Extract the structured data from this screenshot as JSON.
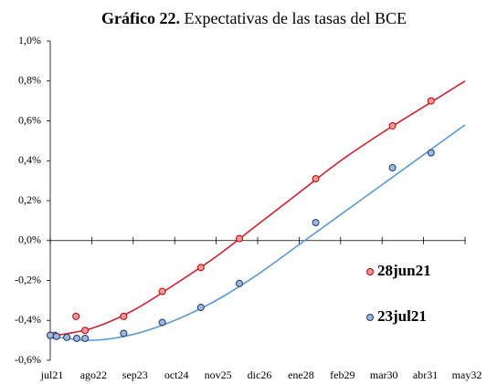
{
  "chart_data": {
    "type": "scatter",
    "title_prefix": "Gráfico 22.",
    "title": " Expectativas de las tasas del BCE",
    "xlim": [
      0,
      10
    ],
    "xticks": [
      {
        "value": 0,
        "label": "jul21"
      },
      {
        "value": 1,
        "label": "ago22"
      },
      {
        "value": 2,
        "label": "sep23"
      },
      {
        "value": 3,
        "label": "oct24"
      },
      {
        "value": 4,
        "label": "nov25"
      },
      {
        "value": 5,
        "label": "dic26"
      },
      {
        "value": 6,
        "label": "ene28"
      },
      {
        "value": 7,
        "label": "feb29"
      },
      {
        "value": 8,
        "label": "mar30"
      },
      {
        "value": 9,
        "label": "abr31"
      },
      {
        "value": 10,
        "label": "may32"
      }
    ],
    "ylim": [
      -0.6,
      1.0
    ],
    "yticks": [
      {
        "value": -0.6,
        "label": "-0,6%"
      },
      {
        "value": -0.4,
        "label": "-0,4%"
      },
      {
        "value": -0.2,
        "label": "-0,2%"
      },
      {
        "value": 0,
        "label": "0,0%"
      },
      {
        "value": 0.2,
        "label": "0,2%"
      },
      {
        "value": 0.4,
        "label": "0,4%"
      },
      {
        "value": 0.6,
        "label": "0,6%"
      },
      {
        "value": 0.8,
        "label": "0,8%"
      },
      {
        "value": 1.0,
        "label": "1,0%"
      }
    ],
    "legend": "right",
    "series": [
      {
        "name": "28jun21",
        "color": "#c00000",
        "fill": "#ee9a9a",
        "x": [
          0,
          0.11,
          0.62,
          0.84,
          1.77,
          2.7,
          3.63,
          4.56,
          6.4,
          8.25,
          9.18
        ],
        "values": [
          -0.475,
          -0.475,
          -0.38,
          -0.45,
          -0.38,
          -0.255,
          -0.135,
          0.01,
          0.31,
          0.575,
          0.7
        ]
      },
      {
        "name": "23jul21",
        "color": "#1f3864",
        "fill": "#9db8e0",
        "x": [
          0,
          0.15,
          0.4,
          0.64,
          0.84,
          1.77,
          2.7,
          3.63,
          4.56,
          6.4,
          8.25,
          9.18
        ],
        "values": [
          -0.475,
          -0.48,
          -0.485,
          -0.49,
          -0.49,
          -0.465,
          -0.41,
          -0.335,
          -0.215,
          0.09,
          0.365,
          0.44
        ]
      }
    ],
    "fit_lines": [
      {
        "color": "#d0202e",
        "x": [
          0,
          1,
          2,
          3,
          4,
          5,
          6,
          7,
          8,
          9,
          10
        ],
        "values": [
          -0.48,
          -0.44,
          -0.35,
          -0.22,
          -0.08,
          0.08,
          0.24,
          0.4,
          0.54,
          0.67,
          0.8
        ]
      },
      {
        "color": "#5b9bd5",
        "x": [
          0,
          1,
          2,
          3,
          4,
          5,
          6,
          7,
          8,
          9,
          10
        ],
        "values": [
          -0.48,
          -0.5,
          -0.47,
          -0.4,
          -0.3,
          -0.17,
          -0.02,
          0.13,
          0.28,
          0.43,
          0.58
        ]
      }
    ]
  }
}
